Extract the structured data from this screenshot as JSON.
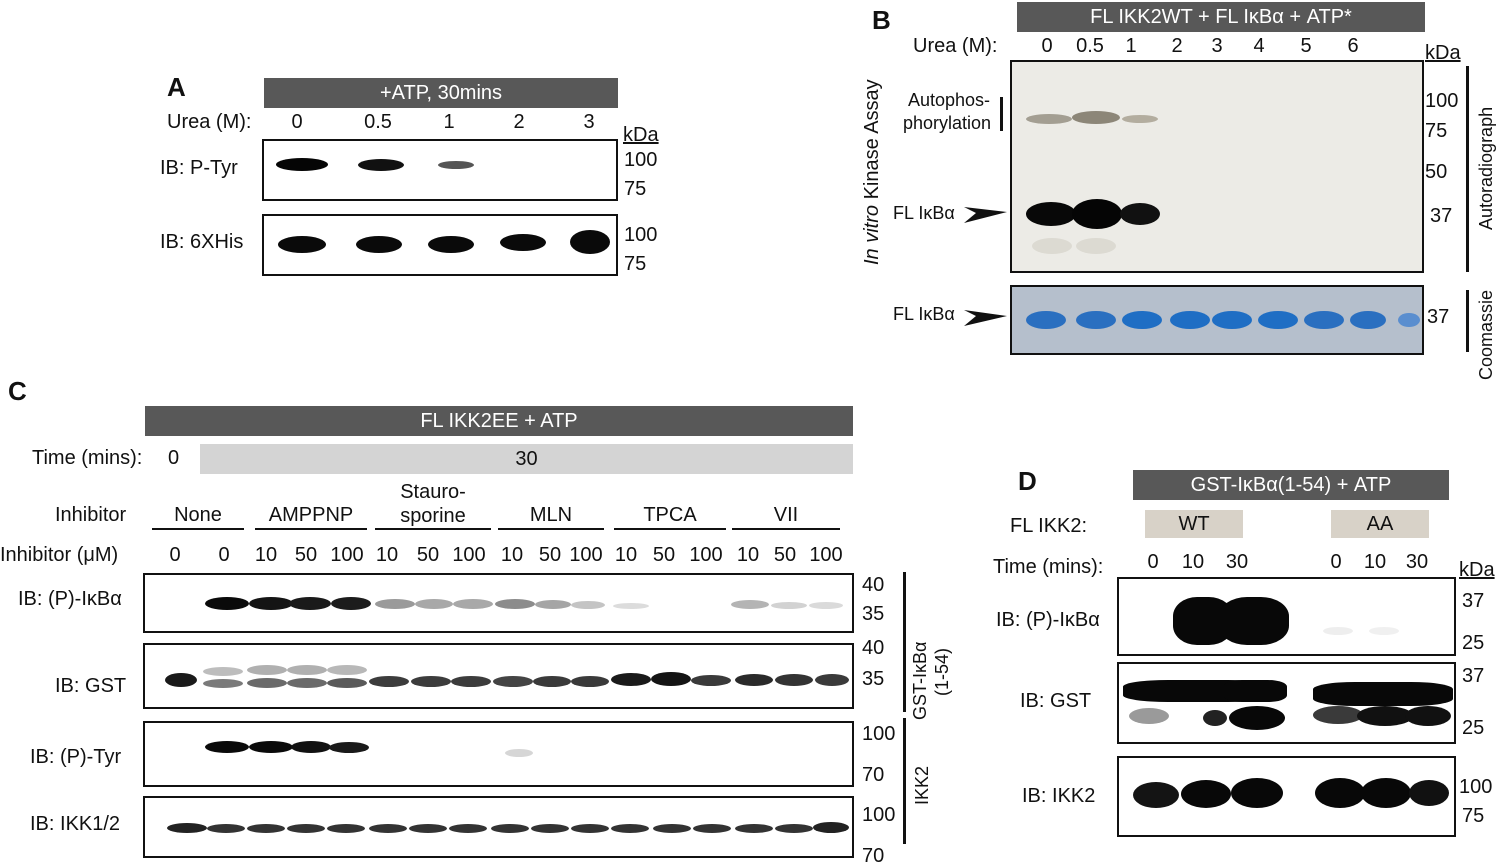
{
  "panelA": {
    "label": "A",
    "header": "+ATP, 30mins",
    "row_label": "Urea (M):",
    "lanes": [
      "0",
      "0.5",
      "1",
      "2",
      "3"
    ],
    "kda": "kDa",
    "blots": [
      {
        "name": "IB: P-Tyr",
        "markers": [
          "100",
          "75"
        ],
        "intensity": [
          1.0,
          0.85,
          0.35,
          0,
          0
        ]
      },
      {
        "name": "IB: 6XHis",
        "markers": [
          "100",
          "75"
        ],
        "intensity": [
          1.0,
          1.0,
          1.0,
          1.0,
          1.0
        ]
      }
    ]
  },
  "panelB": {
    "label": "B",
    "header": "FL IKK2WT + FL IκBα + ATP*",
    "row_label": "Urea (M):",
    "lanes": [
      "0",
      "0.5",
      "1",
      "2",
      "3",
      "4",
      "5",
      "6"
    ],
    "kda": "kDa",
    "side_title_italic": "In vitro",
    "side_title": " Kinase Assay",
    "autophos_label_1": "Autophos-",
    "autophos_label_2": "phorylation",
    "substrate_label": "FL IκBα",
    "autoradiograph_markers": [
      "100",
      "75",
      "50",
      "37"
    ],
    "autoradiograph_label": "Autoradiograph",
    "coomassie_label": "Coomassie",
    "coomassie_marker": "37",
    "coomassie_substrate_label": "FL IκBα",
    "colors": {
      "autoradiograph_bg": "#ecebe6",
      "coomassie_bg": "#b5bfcc",
      "coomassie_band": "#1f6ec4"
    }
  },
  "panelC": {
    "label": "C",
    "header": "FL IKK2EE + ATP",
    "time_label": "Time (mins):",
    "time_zero": "0",
    "time_value": "30",
    "inhibitor_label": "Inhibitor",
    "inhibitor_conc_label": "Inhibitor (μM)",
    "inhibitor_groups": [
      "None",
      "AMPPNP",
      "Stauro-\nsporine",
      "MLN",
      "TPCA",
      "VII"
    ],
    "concentrations": [
      "0",
      "0",
      "10",
      "50",
      "100",
      "10",
      "50",
      "100",
      "10",
      "50",
      "100",
      "10",
      "50",
      "100",
      "10",
      "50",
      "100"
    ],
    "blots": [
      {
        "name": "IB: (P)-IκBα",
        "markers": [
          "40",
          "35"
        ]
      },
      {
        "name": "IB: GST",
        "markers": [
          "40",
          "35"
        ]
      },
      {
        "name": "IB: (P)-Tyr",
        "markers": [
          "100",
          "70"
        ]
      },
      {
        "name": "IB: IKK1/2",
        "markers": [
          "100",
          "70"
        ]
      }
    ],
    "bracket_gst_1": "GST-IκBα",
    "bracket_gst_2": "(1-54)",
    "bracket_ikk2": "IKK2"
  },
  "panelD": {
    "label": "D",
    "header": "GST-IκBα(1-54) + ATP",
    "ikk2_label": "FL IKK2:",
    "wt_label": "WT",
    "aa_label": "AA",
    "time_label": "Time (mins):",
    "times": [
      "0",
      "10",
      "30",
      "0",
      "10",
      "30"
    ],
    "kda": "kDa",
    "blots": [
      {
        "name": "IB: (P)-IκBα",
        "markers": [
          "37",
          "25"
        ]
      },
      {
        "name": "IB: GST",
        "markers": [
          "37",
          "25"
        ]
      },
      {
        "name": "IB: IKK2",
        "markers": [
          "100",
          "75"
        ]
      }
    ],
    "colors": {
      "tag_bg": "#d8d2c8"
    }
  }
}
